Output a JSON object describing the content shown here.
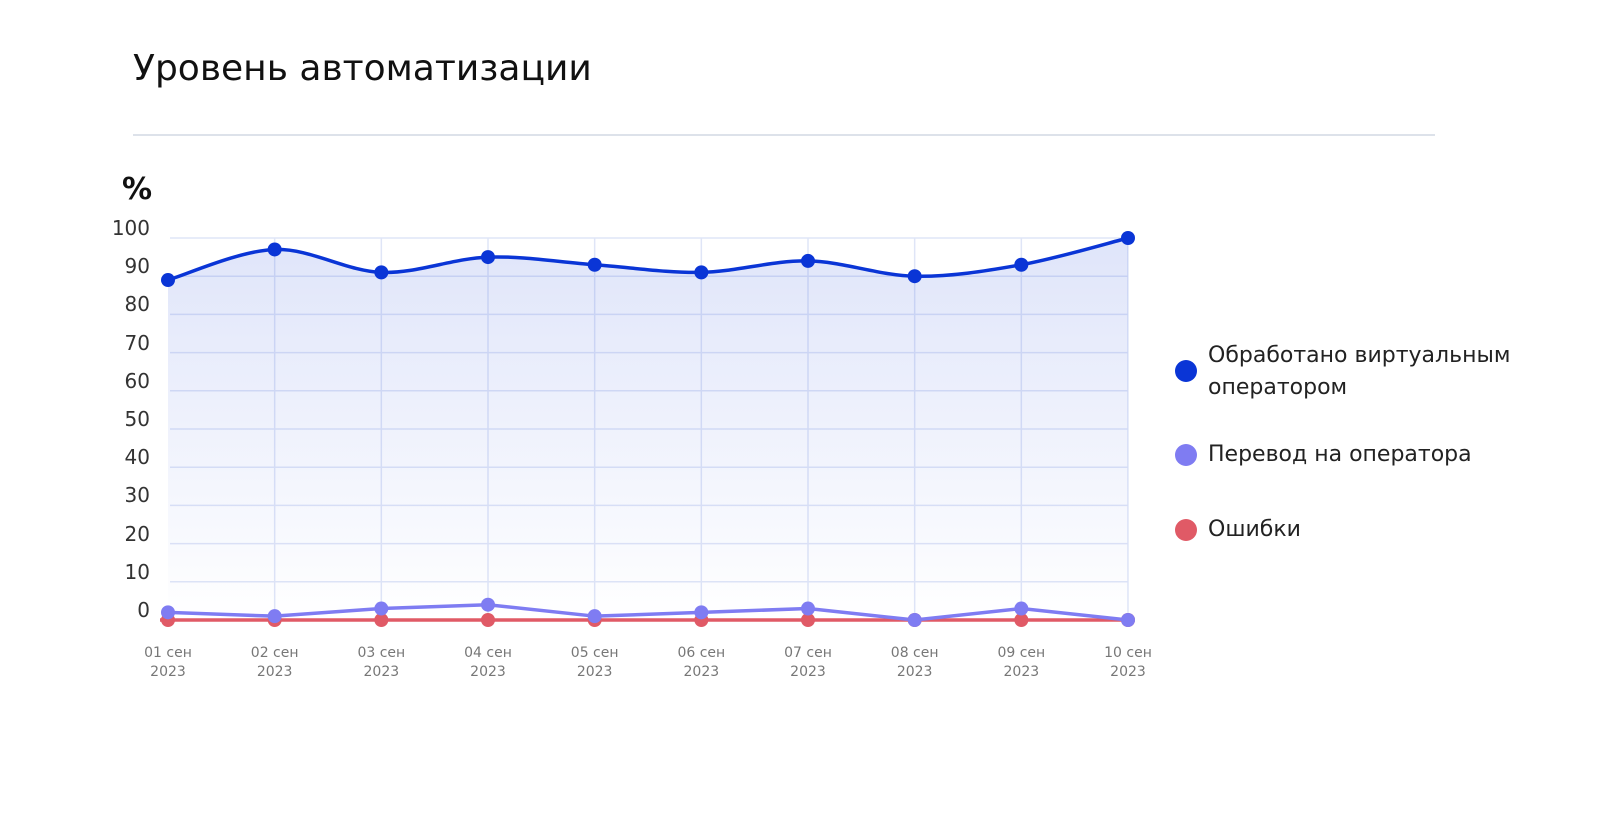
{
  "chart_data": {
    "type": "line",
    "title": "Уровень автоматизации",
    "y_label": "%",
    "categories": [
      "01 сен 2023",
      "02 сен 2023",
      "03 сен 2023",
      "04 сен 2023",
      "05 сен 2023",
      "06 сен 2023",
      "07 сен 2023",
      "08 сен 2023",
      "09 сен 2023",
      "10 сен 2023"
    ],
    "series": [
      {
        "name": "Обработано виртуальным оператором",
        "color": "#0a35d6",
        "values": [
          89,
          97,
          91,
          95,
          93,
          91,
          94,
          90,
          93,
          100
        ]
      },
      {
        "name": "Перевод на оператора",
        "color": "#7f7cf2",
        "values": [
          2,
          1,
          3,
          4,
          1,
          2,
          3,
          0,
          3,
          0
        ]
      },
      {
        "name": "Ошибки",
        "color": "#e05a66",
        "values": [
          0,
          0,
          0,
          0,
          0,
          0,
          0,
          0,
          0,
          0
        ]
      }
    ],
    "ylim": [
      0,
      100
    ],
    "yticks": [
      0,
      10,
      20,
      30,
      40,
      50,
      60,
      70,
      80,
      90,
      100
    ],
    "grid": true
  }
}
